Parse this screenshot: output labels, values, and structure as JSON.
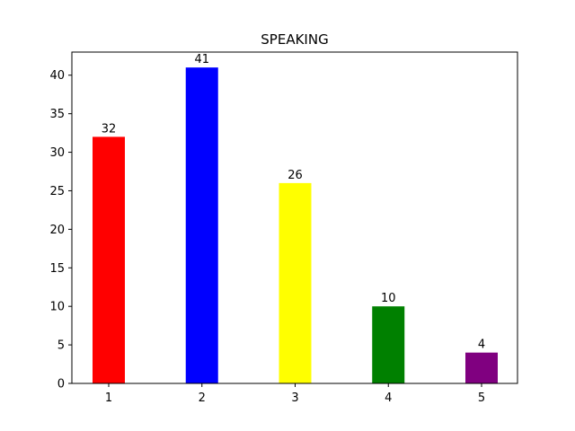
{
  "chart_data": {
    "type": "bar",
    "title": "SPEAKING",
    "xlabel": "",
    "ylabel": "",
    "categories": [
      "1",
      "2",
      "3",
      "4",
      "5"
    ],
    "values": [
      32,
      41,
      26,
      10,
      4
    ],
    "colors": [
      "#ff0000",
      "#0000ff",
      "#ffff00",
      "#008000",
      "#800080"
    ],
    "ylim": [
      0,
      43
    ],
    "yticks": [
      0,
      5,
      10,
      15,
      20,
      25,
      30,
      35,
      40
    ],
    "grid": false,
    "legend": "none"
  }
}
